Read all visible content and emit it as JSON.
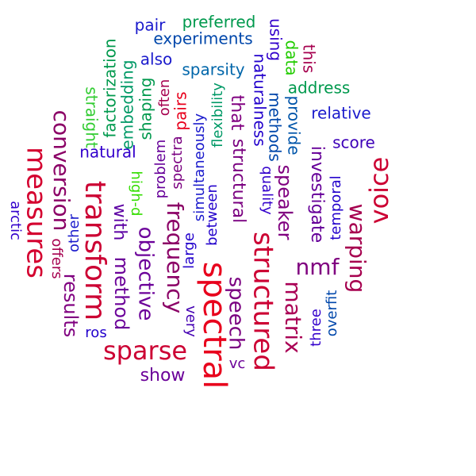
{
  "words": [
    {
      "text": "spectral",
      "color": "#e8001c"
    },
    {
      "text": "transform",
      "color": "#cc0033"
    },
    {
      "text": "measures",
      "color": "#d4002f"
    },
    {
      "text": "structured",
      "color": "#cc0033"
    },
    {
      "text": "sparse",
      "color": "#cc0033"
    },
    {
      "text": "voice",
      "color": "#cc0033"
    },
    {
      "text": "conversion",
      "color": "#8b0066"
    },
    {
      "text": "warping",
      "color": "#a6004f"
    },
    {
      "text": "matrix",
      "color": "#aa0055"
    },
    {
      "text": "nmf",
      "color": "#800080"
    },
    {
      "text": "frequency",
      "color": "#8b0066"
    },
    {
      "text": "objective",
      "color": "#6b0099"
    },
    {
      "text": "speech",
      "color": "#7a0080"
    },
    {
      "text": "results",
      "color": "#800080"
    },
    {
      "text": "method",
      "color": "#6b0099"
    },
    {
      "text": "speaker",
      "color": "#800080"
    },
    {
      "text": "investigate",
      "color": "#660099"
    },
    {
      "text": "structural",
      "color": "#7a0080"
    },
    {
      "text": "that",
      "color": "#800080"
    },
    {
      "text": "show",
      "color": "#6b0099"
    },
    {
      "text": "with",
      "color": "#5c00a3"
    },
    {
      "text": "natural",
      "color": "#3300cc"
    },
    {
      "text": "score",
      "color": "#3d00b8"
    },
    {
      "text": "relative",
      "color": "#1a1acc"
    },
    {
      "text": "experiments",
      "color": "#0047ab"
    },
    {
      "text": "pair",
      "color": "#1a1acc"
    },
    {
      "text": "preferred",
      "color": "#00994d"
    },
    {
      "text": "sparsity",
      "color": "#0066aa"
    },
    {
      "text": "also",
      "color": "#1a1acc"
    },
    {
      "text": "address",
      "color": "#00994d"
    },
    {
      "text": "naturalness",
      "color": "#2200cc"
    },
    {
      "text": "using",
      "color": "#3300cc"
    },
    {
      "text": "methods",
      "color": "#0047ab"
    },
    {
      "text": "provide",
      "color": "#0055aa"
    },
    {
      "text": "data",
      "color": "#22cc00"
    },
    {
      "text": "this",
      "color": "#a6004f"
    },
    {
      "text": "factorization",
      "color": "#00994d"
    },
    {
      "text": "embedding",
      "color": "#009966"
    },
    {
      "text": "straight",
      "color": "#33cc33"
    },
    {
      "text": "shaping",
      "color": "#00994d"
    },
    {
      "text": "often",
      "color": "#a6004f"
    },
    {
      "text": "pairs",
      "color": "#e8001c"
    },
    {
      "text": "flexibility",
      "color": "#009966"
    },
    {
      "text": "simultaneously",
      "color": "#1a1acc"
    },
    {
      "text": "spectra",
      "color": "#7a0080"
    },
    {
      "text": "problem",
      "color": "#660099"
    },
    {
      "text": "high-d",
      "color": "#33dd00"
    },
    {
      "text": "between",
      "color": "#2200cc"
    },
    {
      "text": "large",
      "color": "#2200cc"
    },
    {
      "text": "quality",
      "color": "#3300cc"
    },
    {
      "text": "temporal",
      "color": "#2200cc"
    },
    {
      "text": "other",
      "color": "#1a1acc"
    },
    {
      "text": "offers",
      "color": "#a6004f"
    },
    {
      "text": "ros",
      "color": "#2200cc"
    },
    {
      "text": "very",
      "color": "#4400b3"
    },
    {
      "text": "vc",
      "color": "#6b0099"
    },
    {
      "text": "three",
      "color": "#3300cc"
    },
    {
      "text": "overfit",
      "color": "#0047ab"
    },
    {
      "text": "arctic",
      "color": "#3300cc"
    }
  ]
}
